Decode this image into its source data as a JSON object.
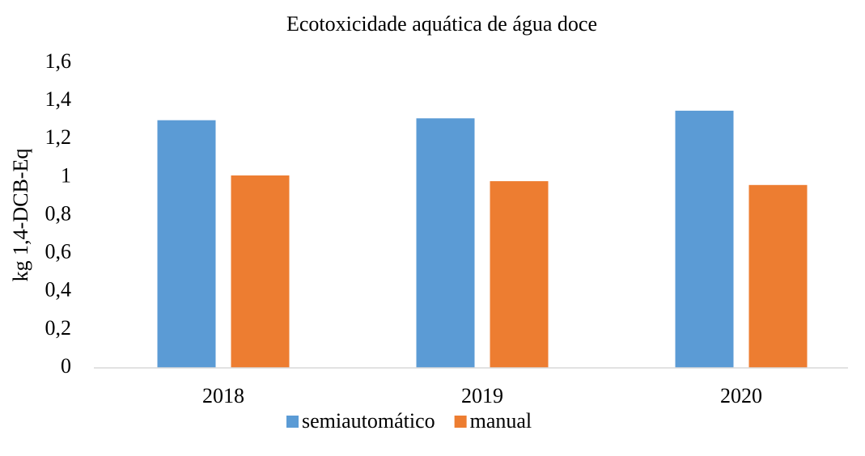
{
  "chart_data": {
    "type": "bar",
    "title": "Ecotoxicidade aquática de água doce",
    "y_label": "kg 1,4-DCB-Eq",
    "categories": [
      "2018",
      "2019",
      "2020"
    ],
    "series": [
      {
        "name": "semiautomático",
        "color": "#5b9bd5",
        "values": [
          1.3,
          1.31,
          1.35
        ]
      },
      {
        "name": "manual",
        "color": "#ed7d31",
        "values": [
          1.01,
          0.98,
          0.96
        ]
      }
    ],
    "ylim": [
      0,
      1.6
    ],
    "yticks": [
      0,
      {
        "value": 0.2,
        "label": "0,2"
      },
      {
        "value": 0.4,
        "label": "0,4"
      },
      {
        "value": 0.6,
        "label": "0,6"
      },
      {
        "value": 0.8,
        "label": "0,8"
      },
      1,
      {
        "value": 1.2,
        "label": "1,2"
      },
      {
        "value": 1.4,
        "label": "1,4"
      },
      {
        "value": 1.6,
        "label": "1,6"
      }
    ],
    "grid": false,
    "legend": "bottom"
  }
}
